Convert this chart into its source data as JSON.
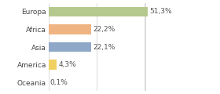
{
  "categories": [
    "Europa",
    "Africa",
    "Asia",
    "America",
    "Oceania"
  ],
  "values": [
    51.3,
    22.2,
    22.1,
    4.3,
    0.1
  ],
  "labels": [
    "51,3%",
    "22,2%",
    "22,1%",
    "4,3%",
    "0,1%"
  ],
  "bar_colors": [
    "#b5c98e",
    "#f0b482",
    "#8fa8c8",
    "#f0d060",
    "#e8e8e8"
  ],
  "background_color": "#ffffff",
  "xlim": [
    0,
    68
  ],
  "bar_height": 0.55,
  "label_fontsize": 6.5,
  "tick_fontsize": 6.5,
  "grid_lines": [
    0,
    25,
    50
  ],
  "grid_color": "#cccccc",
  "grid_linewidth": 0.5,
  "label_color": "#555555",
  "tick_color": "#444444"
}
